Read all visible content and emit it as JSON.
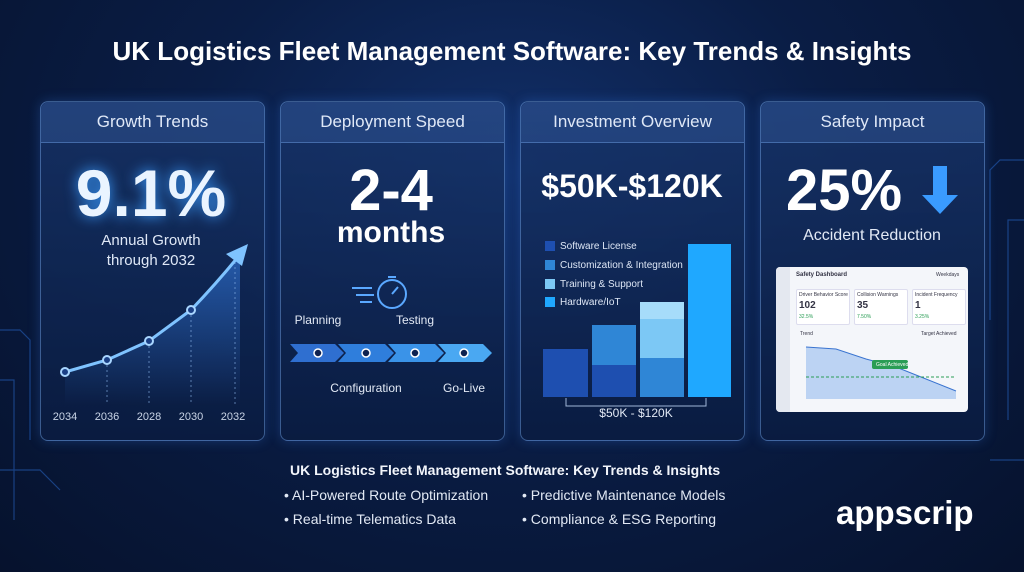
{
  "header": {
    "title": "UK Logistics Fleet Management Software: Key Trends & Insights"
  },
  "cards": [
    {
      "title": "Growth Trends",
      "headline": "9.1%",
      "caption": [
        "Annual Growth",
        "through 2032"
      ],
      "axis_labels": [
        "2034",
        "2036",
        "2028",
        "2030",
        "2032"
      ]
    },
    {
      "title": "Deployment Speed",
      "headline": "2-4",
      "unit": "months",
      "steps": [
        "Planning",
        "Configuration",
        "Testing",
        "Go-Live"
      ]
    },
    {
      "title": "Investment Overview",
      "headline": "$50K-$120K",
      "legend": [
        "Software License",
        "Customization & Integration",
        "Training & Support",
        "Hardware/IoT"
      ],
      "range_label": "$50K - $120K"
    },
    {
      "title": "Safety Impact",
      "headline": "25%",
      "caption": "Accident Reduction",
      "dashboard": {
        "title": "Safety Dashboard",
        "filter": "Weekdays",
        "metrics": [
          {
            "label": "Driver Behavior Score",
            "value": "102",
            "delta": "32.5%"
          },
          {
            "label": "Collision Warnings",
            "value": "35",
            "delta": "7.50%"
          },
          {
            "label": "Incident Frequency",
            "value": "1",
            "delta": "3.25%"
          }
        ],
        "trend_title": "Trend",
        "trend_filter": "Target Achieved",
        "badge": "Goal Achieved"
      }
    }
  ],
  "footer": {
    "heading": "UK Logistics Fleet Management Software: Key Trends & Insights",
    "bullets": [
      "AI-Powered Route Optimization",
      "Predictive Maintenance Models",
      "Real-time Telematics Data",
      "Compliance & ESG Reporting"
    ],
    "brand": "appscrip"
  }
}
